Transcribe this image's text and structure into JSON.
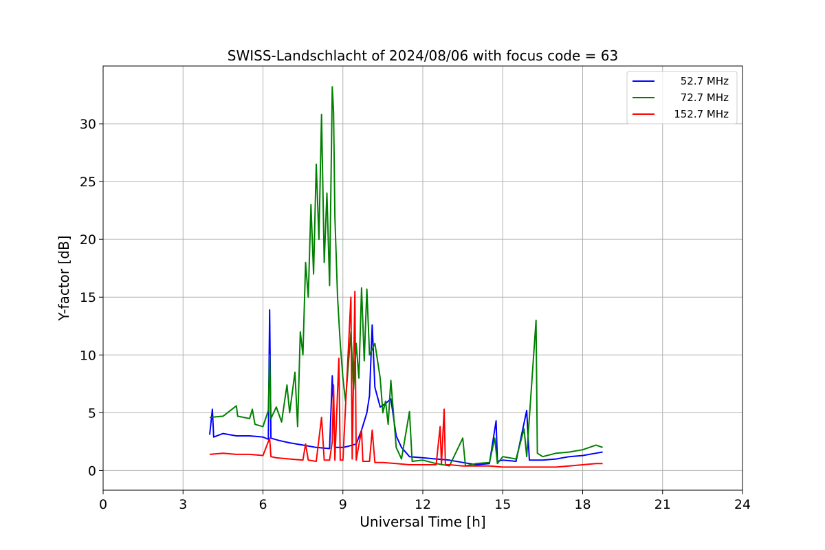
{
  "chart_data": {
    "type": "line",
    "title": "SWISS-Landschlacht of 2024/08/06 with focus code = 63",
    "xlabel": "Universal Time [h]",
    "ylabel": "Y-factor [dB]",
    "xlim": [
      0,
      24
    ],
    "ylim": [
      -1.7,
      35
    ],
    "xticks": [
      0,
      3,
      6,
      9,
      12,
      15,
      18,
      21,
      24
    ],
    "yticks": [
      0,
      5,
      10,
      15,
      20,
      25,
      30
    ],
    "grid": true,
    "legend_position": "top-right",
    "series": [
      {
        "name": "52.7 MHz",
        "color": "#0000ff",
        "points": [
          [
            4.0,
            3.1
          ],
          [
            4.1,
            5.3
          ],
          [
            4.15,
            2.9
          ],
          [
            4.5,
            3.2
          ],
          [
            5.0,
            3.0
          ],
          [
            5.5,
            3.0
          ],
          [
            6.0,
            2.9
          ],
          [
            6.2,
            2.7
          ],
          [
            6.25,
            13.9
          ],
          [
            6.3,
            2.8
          ],
          [
            6.6,
            2.6
          ],
          [
            7.0,
            2.4
          ],
          [
            7.5,
            2.2
          ],
          [
            8.0,
            2.0
          ],
          [
            8.5,
            1.9
          ],
          [
            8.6,
            8.2
          ],
          [
            8.7,
            2.0
          ],
          [
            9.0,
            2.0
          ],
          [
            9.2,
            2.1
          ],
          [
            9.5,
            2.3
          ],
          [
            9.7,
            3.5
          ],
          [
            9.9,
            5.0
          ],
          [
            10.0,
            6.5
          ],
          [
            10.1,
            12.6
          ],
          [
            10.2,
            7.2
          ],
          [
            10.4,
            5.5
          ],
          [
            10.6,
            5.8
          ],
          [
            10.8,
            6.2
          ],
          [
            11.0,
            3.0
          ],
          [
            11.2,
            2.0
          ],
          [
            11.5,
            1.2
          ],
          [
            12.0,
            1.1
          ],
          [
            12.5,
            1.0
          ],
          [
            13.0,
            0.9
          ],
          [
            13.5,
            0.7
          ],
          [
            14.0,
            0.5
          ],
          [
            14.5,
            0.6
          ],
          [
            14.75,
            4.3
          ],
          [
            14.8,
            0.8
          ],
          [
            15.0,
            0.9
          ],
          [
            15.5,
            0.8
          ],
          [
            15.9,
            5.2
          ],
          [
            16.0,
            0.9
          ],
          [
            16.5,
            0.9
          ],
          [
            17.0,
            1.0
          ],
          [
            17.5,
            1.2
          ],
          [
            18.0,
            1.3
          ],
          [
            18.5,
            1.5
          ],
          [
            18.75,
            1.6
          ]
        ]
      },
      {
        "name": "72.7 MHz",
        "color": "#008000",
        "points": [
          [
            4.0,
            4.6
          ],
          [
            4.5,
            4.7
          ],
          [
            5.0,
            5.6
          ],
          [
            5.05,
            4.7
          ],
          [
            5.5,
            4.5
          ],
          [
            5.6,
            5.3
          ],
          [
            5.7,
            4.0
          ],
          [
            6.0,
            3.8
          ],
          [
            6.2,
            5.2
          ],
          [
            6.25,
            10.0
          ],
          [
            6.3,
            4.5
          ],
          [
            6.5,
            5.5
          ],
          [
            6.7,
            4.2
          ],
          [
            6.9,
            7.4
          ],
          [
            7.0,
            5.0
          ],
          [
            7.2,
            8.5
          ],
          [
            7.3,
            3.8
          ],
          [
            7.4,
            12.0
          ],
          [
            7.5,
            10.0
          ],
          [
            7.6,
            18.0
          ],
          [
            7.7,
            15.0
          ],
          [
            7.8,
            23.0
          ],
          [
            7.9,
            17.0
          ],
          [
            8.0,
            26.5
          ],
          [
            8.1,
            20.0
          ],
          [
            8.2,
            30.8
          ],
          [
            8.3,
            18.0
          ],
          [
            8.4,
            24.0
          ],
          [
            8.5,
            16.0
          ],
          [
            8.6,
            33.2
          ],
          [
            8.65,
            31.0
          ],
          [
            8.7,
            22.0
          ],
          [
            8.8,
            15.0
          ],
          [
            8.9,
            11.0
          ],
          [
            9.0,
            8.0
          ],
          [
            9.1,
            6.0
          ],
          [
            9.2,
            9.0
          ],
          [
            9.3,
            12.0
          ],
          [
            9.4,
            7.0
          ],
          [
            9.5,
            11.0
          ],
          [
            9.6,
            8.0
          ],
          [
            9.7,
            15.8
          ],
          [
            9.8,
            9.5
          ],
          [
            9.9,
            15.7
          ],
          [
            10.0,
            10.0
          ],
          [
            10.2,
            11.0
          ],
          [
            10.4,
            8.0
          ],
          [
            10.5,
            5.0
          ],
          [
            10.6,
            6.0
          ],
          [
            10.7,
            4.0
          ],
          [
            10.8,
            7.8
          ],
          [
            11.0,
            2.0
          ],
          [
            11.2,
            1.0
          ],
          [
            11.5,
            5.1
          ],
          [
            11.6,
            0.8
          ],
          [
            12.0,
            0.9
          ],
          [
            12.5,
            0.6
          ],
          [
            13.0,
            0.4
          ],
          [
            13.5,
            2.8
          ],
          [
            13.6,
            0.4
          ],
          [
            14.0,
            0.6
          ],
          [
            14.5,
            0.7
          ],
          [
            14.7,
            2.8
          ],
          [
            14.8,
            0.6
          ],
          [
            15.0,
            1.2
          ],
          [
            15.5,
            1.0
          ],
          [
            15.8,
            3.6
          ],
          [
            15.9,
            1.2
          ],
          [
            16.25,
            13.0
          ],
          [
            16.3,
            1.5
          ],
          [
            16.5,
            1.2
          ],
          [
            17.0,
            1.5
          ],
          [
            17.5,
            1.6
          ],
          [
            18.0,
            1.8
          ],
          [
            18.5,
            2.2
          ],
          [
            18.75,
            2.0
          ]
        ]
      },
      {
        "name": "152.7 MHz",
        "color": "#ff0000",
        "points": [
          [
            4.0,
            1.4
          ],
          [
            4.5,
            1.5
          ],
          [
            5.0,
            1.4
          ],
          [
            5.5,
            1.4
          ],
          [
            6.0,
            1.3
          ],
          [
            6.25,
            2.8
          ],
          [
            6.3,
            1.2
          ],
          [
            6.5,
            1.1
          ],
          [
            7.0,
            1.0
          ],
          [
            7.5,
            0.9
          ],
          [
            7.6,
            2.3
          ],
          [
            7.7,
            0.9
          ],
          [
            8.0,
            0.8
          ],
          [
            8.2,
            4.6
          ],
          [
            8.3,
            0.9
          ],
          [
            8.5,
            0.9
          ],
          [
            8.6,
            2.5
          ],
          [
            8.65,
            7.4
          ],
          [
            8.7,
            0.9
          ],
          [
            8.85,
            9.7
          ],
          [
            8.9,
            0.9
          ],
          [
            9.0,
            0.9
          ],
          [
            9.3,
            15.0
          ],
          [
            9.35,
            1.0
          ],
          [
            9.45,
            15.5
          ],
          [
            9.5,
            0.9
          ],
          [
            9.7,
            3.5
          ],
          [
            9.75,
            0.8
          ],
          [
            10.0,
            0.8
          ],
          [
            10.1,
            3.5
          ],
          [
            10.2,
            0.7
          ],
          [
            10.5,
            0.7
          ],
          [
            11.0,
            0.6
          ],
          [
            11.5,
            0.5
          ],
          [
            12.0,
            0.5
          ],
          [
            12.5,
            0.5
          ],
          [
            12.65,
            3.8
          ],
          [
            12.7,
            0.5
          ],
          [
            12.8,
            5.3
          ],
          [
            12.85,
            0.5
          ],
          [
            13.0,
            0.5
          ],
          [
            13.5,
            0.4
          ],
          [
            14.0,
            0.4
          ],
          [
            14.5,
            0.4
          ],
          [
            15.0,
            0.3
          ],
          [
            15.5,
            0.3
          ],
          [
            16.0,
            0.3
          ],
          [
            16.5,
            0.3
          ],
          [
            17.0,
            0.3
          ],
          [
            17.5,
            0.4
          ],
          [
            18.0,
            0.5
          ],
          [
            18.5,
            0.6
          ],
          [
            18.75,
            0.6
          ]
        ]
      }
    ]
  }
}
